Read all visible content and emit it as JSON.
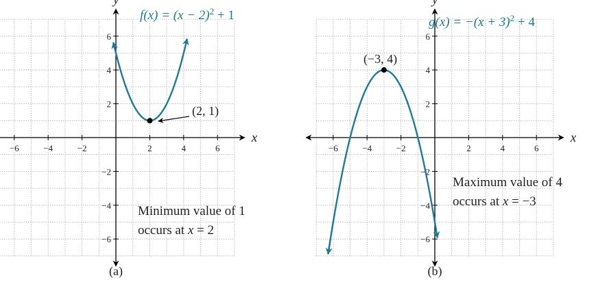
{
  "colors": {
    "curve": "#1c7a99",
    "axis": "#000000",
    "grid": "#9a9a9a",
    "text": "#231f20"
  },
  "chart_data": [
    {
      "type": "line",
      "panel_label": "(a)",
      "function": {
        "a": 1,
        "h": 2,
        "k": 1
      },
      "equation": {
        "lhs": "f(x) = (x − 2)",
        "exp": "2",
        "rhs": " + 1"
      },
      "xlim": [
        -7,
        7
      ],
      "ylim": [
        -7,
        7
      ],
      "x_domain": [
        -0.15,
        4.2
      ],
      "x_ticks": [
        -6,
        -4,
        -2,
        2,
        4,
        6
      ],
      "y_ticks": [
        -6,
        -4,
        -2,
        2,
        4,
        6
      ],
      "x_tick_labels": [
        "−6",
        "−4",
        "−2",
        "2",
        "4",
        "6"
      ],
      "y_tick_labels": [
        "−6",
        "−4",
        "−2",
        "2",
        "4",
        "6"
      ],
      "xlabel": "x",
      "ylabel": "y",
      "vertex": {
        "x": 2,
        "y": 1,
        "label": "(2, 1)"
      },
      "annotation": {
        "line1": "Minimum value of 1",
        "line2_pre": "occurs at ",
        "line2_var": "x",
        "line2_post": " = 2"
      },
      "grid": true
    },
    {
      "type": "line",
      "panel_label": "(b)",
      "function": {
        "a": -1,
        "h": -3,
        "k": 4
      },
      "equation": {
        "lhs": "g(x) = −(x + 3)",
        "exp": "2",
        "rhs": " + 4"
      },
      "xlim": [
        -7,
        7
      ],
      "ylim": [
        -7,
        7
      ],
      "x_domain": [
        -6.3,
        0.15
      ],
      "x_ticks": [
        -6,
        -4,
        -2,
        2,
        4,
        6
      ],
      "y_ticks": [
        -6,
        -4,
        -2,
        2,
        4,
        6
      ],
      "x_tick_labels": [
        "−6",
        "−4",
        "−2",
        "2",
        "4",
        "6"
      ],
      "y_tick_labels": [
        "−6",
        "−4",
        "−2",
        "2",
        "4",
        "6"
      ],
      "xlabel": "x",
      "ylabel": "y",
      "vertex": {
        "x": -3,
        "y": 4,
        "label": "(−3, 4)"
      },
      "annotation": {
        "line1": "Maximum value of 4",
        "line2_pre": "occurs at ",
        "line2_var": "x",
        "line2_post": " = −3"
      },
      "grid": true
    }
  ]
}
